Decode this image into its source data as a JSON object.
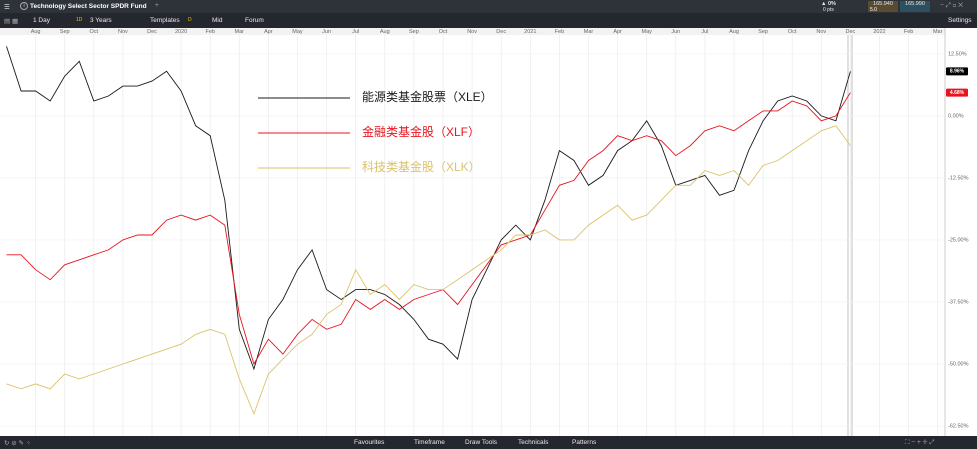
{
  "header": {
    "title": "Technology Select Sector SPDR Fund",
    "change": "0%",
    "points": "0 pts",
    "bid": "165.940",
    "ask": "165.990",
    "spread": "5.0"
  },
  "toolbar": {
    "interval": "1 Day",
    "interval_badge": "1D",
    "range": "3 Years",
    "templates": "Templates",
    "templates_badge": "D",
    "price_type": "Mid",
    "forum": "Forum",
    "settings": "Settings"
  },
  "bottom_bar": {
    "tabs": [
      "Favourites",
      "Timeframe",
      "Draw Tools",
      "Technicals",
      "Patterns"
    ]
  },
  "chart_data": {
    "type": "line",
    "categories": [
      null,
      null,
      "Aug",
      null,
      "Sep",
      null,
      "Oct",
      null,
      "Nov",
      null,
      "Dec",
      null,
      "2020",
      null,
      "Feb",
      null,
      "Mar",
      null,
      "Apr",
      null,
      "May",
      null,
      "Jun",
      null,
      "Jul",
      null,
      "Aug",
      null,
      "Sep",
      null,
      "Oct",
      null,
      "Nov",
      null,
      "Dec",
      null,
      "2021",
      null,
      "Feb",
      null,
      "Mar",
      null,
      "Apr",
      null,
      "May",
      null,
      "Jun",
      null,
      "Jul",
      null,
      "Aug",
      null,
      "Sep",
      null,
      "Oct",
      null,
      "Nov",
      null,
      "Dec",
      null,
      "2022",
      null,
      "Feb",
      null,
      "Mar"
    ],
    "series": [
      {
        "name": "能源类基金股票（XLE）",
        "color": "#1a1a1a",
        "values": [
          14,
          5,
          5,
          3,
          8,
          11,
          3,
          4,
          6,
          6,
          7,
          9,
          5,
          -2,
          -4,
          -17,
          -43,
          -51,
          -41,
          -37,
          -31,
          -27,
          -35,
          -37,
          -35,
          -35,
          -36,
          -38,
          -41,
          -45,
          -46,
          -49,
          -37,
          -31,
          -25,
          -22,
          -25,
          -17,
          -7,
          -9,
          -14,
          -12,
          -7,
          -5,
          -1,
          -6,
          -14,
          -13,
          -12,
          -16,
          -15,
          -7,
          -1,
          3,
          4,
          3,
          0,
          -1,
          8.96,
          null,
          null,
          null,
          null,
          null,
          null
        ]
      },
      {
        "name": "金融类基金股（XLF）",
        "color": "#e8141e",
        "values": [
          -28,
          -28,
          -31,
          -33,
          -30,
          -29,
          -28,
          -27,
          -25,
          -24,
          -24,
          -21,
          -20,
          -21,
          -20,
          -22,
          -40,
          -50,
          -45,
          -48,
          -44,
          -41,
          -43,
          -42,
          -37,
          -39,
          -37,
          -39,
          -37,
          -36,
          -35,
          -38,
          -34,
          -30,
          -26,
          -25,
          -24,
          -19,
          -14,
          -13,
          -9,
          -7,
          -4,
          -5,
          -4,
          -5,
          -8,
          -6,
          -3,
          -2,
          -3,
          -1,
          1,
          1,
          3,
          2,
          -1,
          0,
          4.68,
          null,
          null,
          null,
          null,
          null,
          null
        ]
      },
      {
        "name": "科技类基金股（XLK）",
        "color": "#dcc26a",
        "values": [
          -54,
          -55,
          -54,
          -55,
          -52,
          -53,
          -52,
          -51,
          -50,
          -49,
          -48,
          -47,
          -46,
          -44,
          -43,
          -44,
          -53,
          -60,
          -52,
          -49,
          -46,
          -44,
          -40,
          -38,
          -31,
          -36,
          -34,
          -37,
          -34,
          -35,
          -35,
          -33,
          -31,
          -29,
          -27,
          -24,
          -24,
          -23,
          -25,
          -25,
          -22,
          -20,
          -18,
          -21,
          -20,
          -17,
          -14,
          -14,
          -11,
          -12,
          -11,
          -14,
          -10,
          -9,
          -7,
          -5,
          -3,
          -2,
          -6,
          null,
          null,
          null,
          null,
          null,
          null
        ]
      }
    ],
    "badges": [
      {
        "value": 8.96,
        "label": "8.96%",
        "color": "#000000"
      },
      {
        "value": 4.68,
        "label": "4.68%",
        "color": "#e8141e"
      }
    ],
    "ylim": [
      -64.5,
      17.5
    ],
    "yticks": [
      {
        "value": 12.5,
        "label": "12.50%"
      },
      {
        "value": 0,
        "label": "0.00%"
      },
      {
        "value": -12.5,
        "label": "-12.50%"
      },
      {
        "value": -25,
        "label": "-25.00%"
      },
      {
        "value": -37.5,
        "label": "-37.50%"
      },
      {
        "value": -50,
        "label": "-50.00%"
      },
      {
        "value": -62.5,
        "label": "-62.50%"
      }
    ],
    "grid": true
  }
}
